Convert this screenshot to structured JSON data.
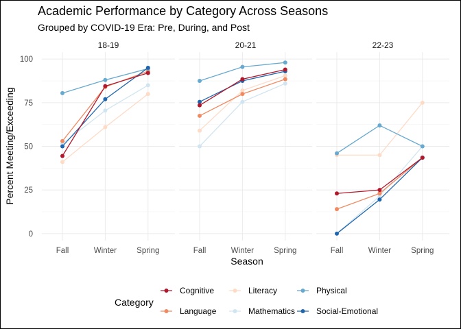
{
  "chart_data": {
    "type": "line",
    "title": "Academic Performance by Category Across Seasons",
    "subtitle": "Grouped by COVID-19 Era: Pre, During, and Post",
    "xlabel": "Season",
    "ylabel": "Percent Meeting/Exceeding",
    "categories": [
      "Fall",
      "Winter",
      "Spring"
    ],
    "ylim": [
      -4,
      104
    ],
    "yticks": [
      0,
      25,
      50,
      75,
      100
    ],
    "grid": true,
    "legend": {
      "title": "Category",
      "position": "bottom"
    },
    "series_colors": {
      "Cognitive": "#b2182b",
      "Language": "#ef8a62",
      "Literacy": "#fddbc7",
      "Mathematics": "#d1e5f0",
      "Physical": "#67a9cf",
      "Social-Emotional": "#2166ac"
    },
    "legend_order": [
      "Cognitive",
      "Language",
      "Literacy",
      "Mathematics",
      "Physical",
      "Social-Emotional"
    ],
    "draw_order": [
      "Literacy",
      "Mathematics",
      "Language",
      "Physical",
      "Social-Emotional",
      "Cognitive"
    ],
    "panels": [
      {
        "label": "18-19",
        "series": [
          {
            "name": "Cognitive",
            "values": [
              44.5,
              84.5,
              92
            ]
          },
          {
            "name": "Language",
            "values": [
              53,
              84,
              93
            ]
          },
          {
            "name": "Literacy",
            "values": [
              41,
              61,
              80
            ]
          },
          {
            "name": "Mathematics",
            "values": [
              51.5,
              70.5,
              85
            ]
          },
          {
            "name": "Physical",
            "values": [
              80.5,
              88,
              94.5
            ]
          },
          {
            "name": "Social-Emotional",
            "values": [
              50,
              77,
              95
            ]
          }
        ]
      },
      {
        "label": "20-21",
        "series": [
          {
            "name": "Cognitive",
            "values": [
              73.5,
              88.5,
              94
            ]
          },
          {
            "name": "Language",
            "values": [
              67.5,
              80,
              88.5
            ]
          },
          {
            "name": "Literacy",
            "values": [
              59,
              82,
              90.5
            ]
          },
          {
            "name": "Mathematics",
            "values": [
              50,
              75.5,
              86
            ]
          },
          {
            "name": "Physical",
            "values": [
              87.5,
              95.5,
              98
            ]
          },
          {
            "name": "Social-Emotional",
            "values": [
              75.5,
              87.5,
              93
            ]
          }
        ]
      },
      {
        "label": "22-23",
        "series": [
          {
            "name": "Cognitive",
            "values": [
              23,
              25,
              43.5
            ]
          },
          {
            "name": "Language",
            "values": [
              14,
              23,
              43.5
            ]
          },
          {
            "name": "Literacy",
            "values": [
              45,
              45,
              75
            ]
          },
          {
            "name": "Mathematics",
            "values": [
              0,
              21.5,
              50
            ]
          },
          {
            "name": "Physical",
            "values": [
              46,
              62,
              50
            ]
          },
          {
            "name": "Social-Emotional",
            "values": [
              0,
              19.5,
              43.5
            ]
          }
        ]
      }
    ]
  }
}
